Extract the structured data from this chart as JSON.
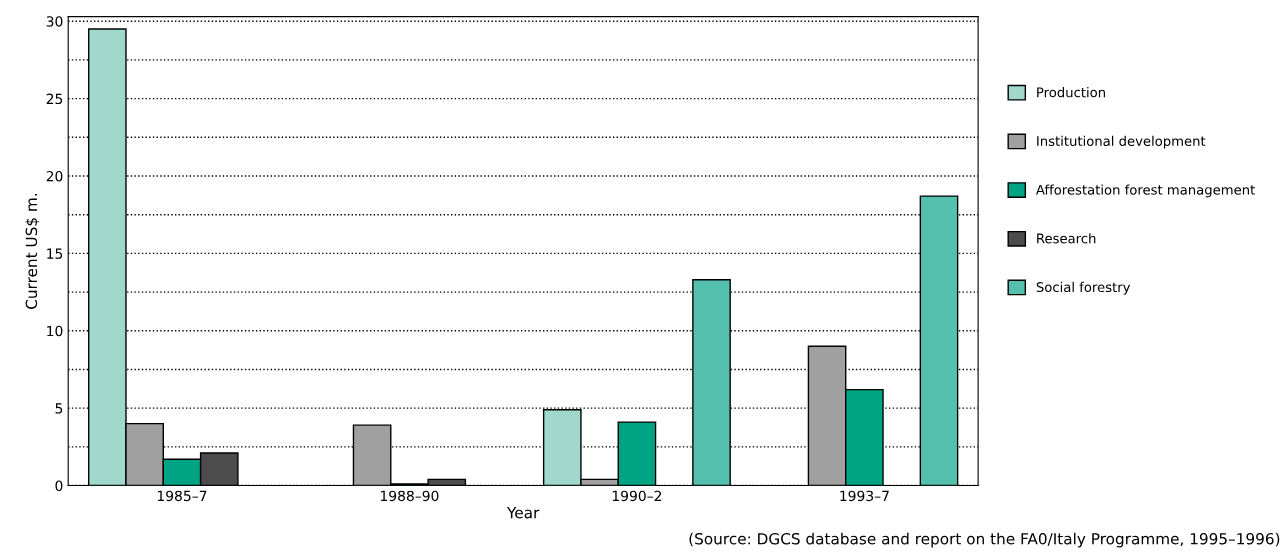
{
  "chart_data": {
    "type": "bar",
    "xlabel": "Year",
    "ylabel": "Current US$ m.",
    "categories": [
      "1985–7",
      "1988–90",
      "1990–2",
      "1993–7"
    ],
    "series": [
      {
        "name": "Production",
        "color": "#a0d9cc",
        "values": [
          29.5,
          null,
          4.9,
          null
        ]
      },
      {
        "name": "Institutional development",
        "color": "#a0a0a0",
        "values": [
          4.0,
          3.9,
          0.4,
          9.0
        ]
      },
      {
        "name": "Afforestation forest management",
        "color": "#00a383",
        "values": [
          1.7,
          0.1,
          4.1,
          6.2
        ]
      },
      {
        "name": "Research",
        "color": "#4d4d4d",
        "values": [
          2.1,
          0.4,
          null,
          null
        ]
      },
      {
        "name": "Social forestry",
        "color": "#55c0ad",
        "values": [
          null,
          null,
          13.3,
          18.7
        ]
      }
    ],
    "ylim": [
      0,
      30.3
    ],
    "yticks": [
      0,
      {
        "value": 2.5,
        "label": null
      },
      5,
      {
        "value": 7.5,
        "label": null
      },
      10,
      {
        "value": 12.5,
        "label": null
      },
      15,
      {
        "value": 17.5,
        "label": null
      },
      20,
      {
        "value": 22.5,
        "label": null
      },
      25,
      {
        "value": 27.5,
        "label": null
      },
      30
    ],
    "grid": "y",
    "legend": "right",
    "line_style": "dotted",
    "annotations": [
      "(Source: DGCS database and report on the FA0/Italy Programme, 1995–1996)"
    ]
  }
}
